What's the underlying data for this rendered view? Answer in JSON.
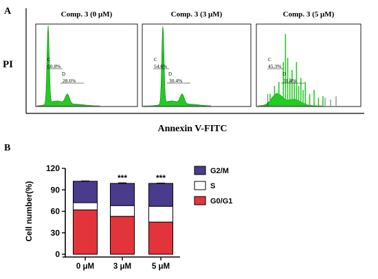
{
  "panel_a": {
    "label": "A",
    "y_axis_label": "PI",
    "x_axis_label": "Annexin V-FITC"
  },
  "panel_b": {
    "label": "B"
  },
  "colors": {
    "histogram": "#22cc22",
    "g2m": "#4a3b8c",
    "s": "#ffffff",
    "g0g1": "#e2343a"
  },
  "chart_data": [
    {
      "type": "histogram",
      "title": "Comp. 3 (0 μM)",
      "gates": [
        {
          "label": "C",
          "value": "60.8%"
        },
        {
          "label": "D",
          "value": "28.6%"
        }
      ]
    },
    {
      "type": "histogram",
      "title": "Comp. 3 (3 μM)",
      "gates": [
        {
          "label": "C",
          "value": "54.6%"
        },
        {
          "label": "D",
          "value": "30.4%"
        }
      ]
    },
    {
      "type": "histogram",
      "title": "Comp. 3 (5 μM)",
      "gates": [
        {
          "label": "C",
          "value": "45.3%"
        },
        {
          "label": "D",
          "value": "31.4%"
        }
      ]
    },
    {
      "type": "bar",
      "stacked": true,
      "categories": [
        "0 μM",
        "3 μM",
        "5 μM"
      ],
      "ylabel": "Cell number(%)",
      "ylim": [
        0,
        120
      ],
      "yticks": [
        0,
        30,
        60,
        90,
        120
      ],
      "significance": [
        "",
        "***",
        "***"
      ],
      "legend_position": "right",
      "series": [
        {
          "name": "G0/G1",
          "values": [
            62,
            53,
            45
          ],
          "error": [
            1.5,
            1.5,
            0.8
          ]
        },
        {
          "name": "S",
          "values": [
            10,
            15,
            22
          ],
          "error": [
            0.8,
            1.5,
            1.0
          ]
        },
        {
          "name": "G2/M",
          "values": [
            30,
            31,
            32
          ],
          "error": [
            0.5,
            0.8,
            0.5
          ]
        }
      ]
    }
  ]
}
